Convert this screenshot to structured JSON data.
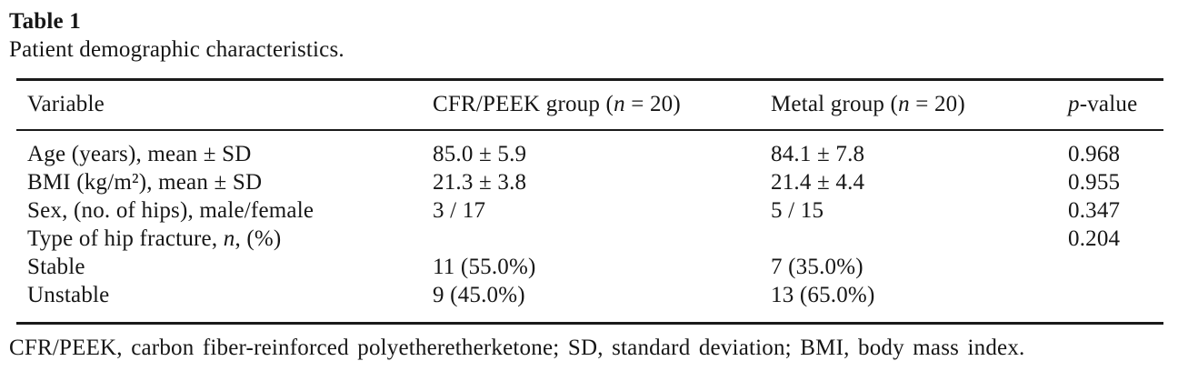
{
  "table_label": "Table 1",
  "table_caption": "Patient demographic characteristics.",
  "header": {
    "col1": "Variable",
    "col2": {
      "pre": "CFR/PEEK group (",
      "italic": "n",
      "post": " = 20)"
    },
    "col3": {
      "pre": "Metal group (",
      "italic": "n",
      "post": " = 20)"
    },
    "col4": {
      "pre": "",
      "italic": "p",
      "post": "-value"
    }
  },
  "rows": [
    {
      "variable": "Age (years), mean ± SD",
      "cfr_peek": "85.0 ± 5.9",
      "metal": "84.1 ± 7.8",
      "p_value": "0.968"
    },
    {
      "variable": "BMI (kg/m²), mean ± SD",
      "cfr_peek": "21.3 ± 3.8",
      "metal": "21.4 ± 4.4",
      "p_value": "0.955"
    },
    {
      "variable": "Sex, (no. of hips), male/female",
      "cfr_peek": "3 / 17",
      "metal": "5 / 15",
      "p_value": "0.347"
    },
    {
      "variable_pre": "Type of hip fracture, ",
      "variable_italic": "n",
      "variable_post": ", (%)",
      "cfr_peek": "",
      "metal": "",
      "p_value": "0.204"
    },
    {
      "variable": "Stable",
      "cfr_peek": "11 (55.0%)",
      "metal": "7 (35.0%)",
      "p_value": ""
    },
    {
      "variable": "Unstable",
      "cfr_peek": "9 (45.0%)",
      "metal": "13 (65.0%)",
      "p_value": ""
    }
  ],
  "footnote": "CFR/PEEK, carbon fiber-reinforced polyetheretherketone; SD, standard deviation; BMI, body mass index.",
  "colors": {
    "text": "#161616",
    "rule": "#1a1a1a",
    "background": "#ffffff"
  }
}
